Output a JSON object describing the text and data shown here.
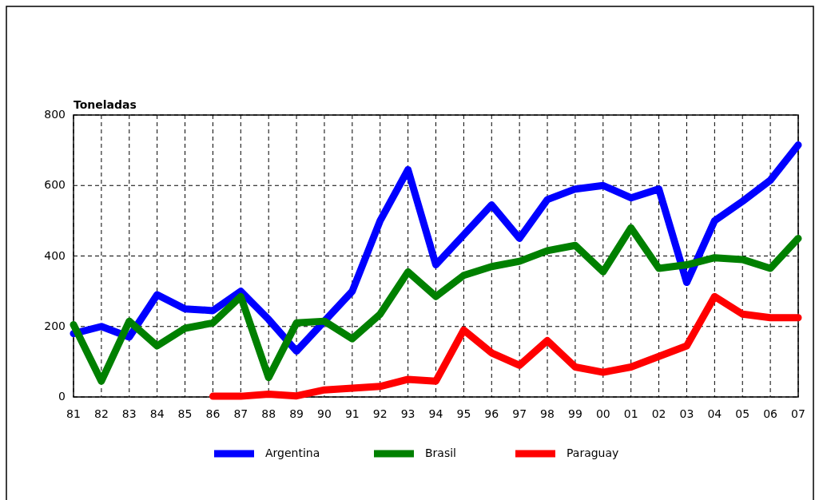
{
  "chart_data": {
    "type": "line",
    "ylabel": "Toneladas",
    "categories": [
      "81",
      "82",
      "83",
      "84",
      "85",
      "86",
      "87",
      "88",
      "89",
      "90",
      "91",
      "92",
      "93",
      "94",
      "95",
      "96",
      "97",
      "98",
      "99",
      "00",
      "01",
      "02",
      "03",
      "04",
      "05",
      "06",
      "07"
    ],
    "series": [
      {
        "name": "Argentina",
        "color": "#0000ff",
        "values": [
          180,
          200,
          170,
          290,
          250,
          245,
          300,
          220,
          130,
          215,
          300,
          500,
          645,
          375,
          460,
          545,
          450,
          560,
          590,
          600,
          565,
          590,
          325,
          500,
          555,
          615,
          715
        ]
      },
      {
        "name": "Brasil",
        "color": "#008000",
        "values": [
          205,
          45,
          215,
          145,
          195,
          210,
          285,
          55,
          210,
          215,
          165,
          235,
          355,
          285,
          345,
          370,
          385,
          415,
          430,
          355,
          480,
          365,
          375,
          395,
          390,
          365,
          450
        ]
      },
      {
        "name": "Paraguay",
        "color": "#ff0000",
        "values": [
          null,
          null,
          null,
          null,
          null,
          2,
          2,
          8,
          3,
          20,
          25,
          30,
          50,
          45,
          190,
          125,
          90,
          160,
          85,
          70,
          85,
          115,
          145,
          285,
          235,
          225,
          225
        ]
      }
    ],
    "ylim": [
      0,
      800
    ],
    "yticks": [
      0,
      200,
      400,
      600,
      800
    ],
    "grid": true,
    "legend": "bottom",
    "marker": "none",
    "line_style": "solid"
  }
}
